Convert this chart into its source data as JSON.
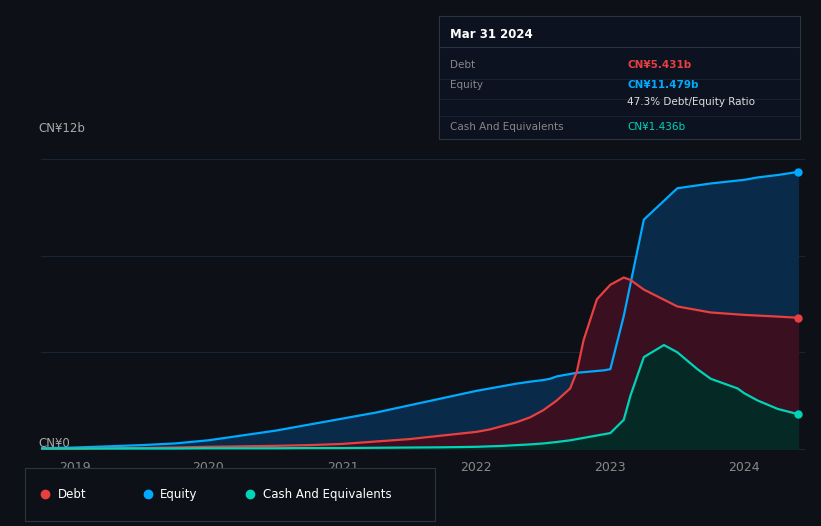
{
  "background_color": "#0d1117",
  "plot_bg_color": "#0d1117",
  "grid_color": "#1a2535",
  "x_ticks": [
    2019,
    2020,
    2021,
    2022,
    2023,
    2024
  ],
  "x_min": 2018.75,
  "x_max": 2024.45,
  "y_min": -0.15,
  "y_max": 12.5,
  "ylabel_top": "CN¥12b",
  "ylabel_bottom": "CN¥0",
  "tooltip": {
    "title": "Mar 31 2024",
    "bg_color": "#0c1220",
    "rows": [
      {
        "label": "Debt",
        "value": "CN¥5.431b",
        "label_color": "#888888",
        "value_color": "#e84040"
      },
      {
        "label": "Equity",
        "value": "CN¥11.479b",
        "label_color": "#888888",
        "value_color": "#00aaff"
      },
      {
        "label": "",
        "value": "47.3% Debt/Equity Ratio",
        "label_color": "#888888",
        "value_color": "#dddddd"
      },
      {
        "label": "Cash And Equivalents",
        "value": "CN¥1.436b",
        "label_color": "#888888",
        "value_color": "#00d4b8"
      }
    ]
  },
  "equity": {
    "line_color": "#00aaff",
    "fill_color": "#0a2a4a",
    "x": [
      2018.75,
      2019.0,
      2019.25,
      2019.5,
      2019.75,
      2020.0,
      2020.25,
      2020.5,
      2020.75,
      2021.0,
      2021.25,
      2021.5,
      2021.75,
      2022.0,
      2022.1,
      2022.2,
      2022.3,
      2022.4,
      2022.5,
      2022.55,
      2022.6,
      2022.7,
      2022.75,
      2022.85,
      2022.95,
      2023.0,
      2023.1,
      2023.25,
      2023.5,
      2023.75,
      2024.0,
      2024.1,
      2024.25,
      2024.4
    ],
    "y": [
      0.02,
      0.05,
      0.1,
      0.15,
      0.22,
      0.35,
      0.55,
      0.75,
      1.0,
      1.25,
      1.5,
      1.8,
      2.1,
      2.4,
      2.5,
      2.6,
      2.7,
      2.78,
      2.85,
      2.9,
      3.0,
      3.1,
      3.15,
      3.2,
      3.25,
      3.3,
      5.5,
      9.5,
      10.8,
      11.0,
      11.15,
      11.25,
      11.35,
      11.479
    ]
  },
  "debt": {
    "line_color": "#e84040",
    "fill_color": "#3a1020",
    "x": [
      2018.75,
      2019.0,
      2019.25,
      2019.5,
      2019.75,
      2020.0,
      2020.25,
      2020.5,
      2020.75,
      2021.0,
      2021.25,
      2021.5,
      2021.75,
      2022.0,
      2022.1,
      2022.2,
      2022.3,
      2022.4,
      2022.5,
      2022.6,
      2022.7,
      2022.75,
      2022.8,
      2022.9,
      2023.0,
      2023.1,
      2023.15,
      2023.25,
      2023.5,
      2023.75,
      2024.0,
      2024.25,
      2024.4
    ],
    "y": [
      0.0,
      0.0,
      0.02,
      0.03,
      0.05,
      0.08,
      0.1,
      0.12,
      0.15,
      0.2,
      0.3,
      0.4,
      0.55,
      0.7,
      0.8,
      0.95,
      1.1,
      1.3,
      1.6,
      2.0,
      2.5,
      3.2,
      4.5,
      6.2,
      6.8,
      7.1,
      7.0,
      6.6,
      5.9,
      5.65,
      5.55,
      5.48,
      5.431
    ]
  },
  "cash": {
    "line_color": "#00d4b8",
    "fill_color": "#052a25",
    "x": [
      2018.75,
      2019.0,
      2019.25,
      2019.5,
      2019.75,
      2020.0,
      2020.25,
      2020.5,
      2020.75,
      2021.0,
      2021.25,
      2021.5,
      2021.75,
      2022.0,
      2022.1,
      2022.2,
      2022.3,
      2022.4,
      2022.5,
      2022.6,
      2022.7,
      2022.8,
      2022.9,
      2023.0,
      2023.1,
      2023.15,
      2023.25,
      2023.4,
      2023.5,
      2023.65,
      2023.75,
      2023.85,
      2023.95,
      2024.0,
      2024.1,
      2024.25,
      2024.4
    ],
    "y": [
      0.01,
      0.01,
      0.01,
      0.01,
      0.01,
      0.02,
      0.02,
      0.02,
      0.03,
      0.03,
      0.04,
      0.05,
      0.06,
      0.08,
      0.1,
      0.12,
      0.15,
      0.18,
      0.22,
      0.28,
      0.35,
      0.45,
      0.55,
      0.65,
      1.2,
      2.2,
      3.8,
      4.3,
      4.0,
      3.3,
      2.9,
      2.7,
      2.5,
      2.3,
      2.0,
      1.65,
      1.436
    ]
  },
  "legend": [
    {
      "label": "Debt",
      "color": "#e84040"
    },
    {
      "label": "Equity",
      "color": "#00aaff"
    },
    {
      "label": "Cash And Equivalents",
      "color": "#00d4b8"
    }
  ]
}
